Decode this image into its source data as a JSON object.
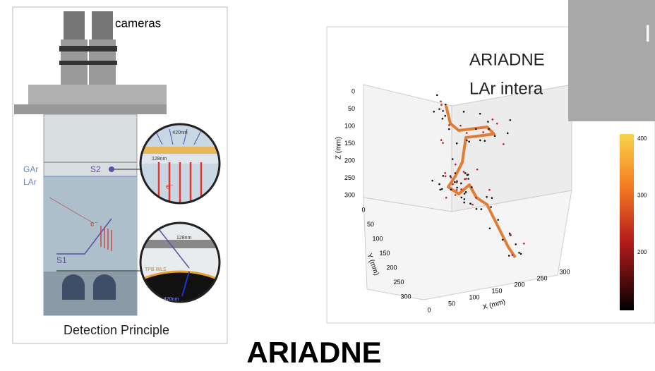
{
  "left_figure": {
    "camera_label": "cameras",
    "gas_label": "GAr",
    "liquid_label": "LAr",
    "s2_label": "S2",
    "s1_label": "S1",
    "zoom_top_wavelength_out": "420nm",
    "zoom_top_wavelength_in": "128nm",
    "zoom_top_electron": "e⁻",
    "drift_electron": "e⁻",
    "zoom_bottom_wavelength_in": "128nm",
    "zoom_bottom_wls": "TPB WLS",
    "zoom_bottom_wavelength_out": "420nm",
    "caption": "Detection Principle"
  },
  "right_figure": {
    "title_lines": [
      "ARIADNE",
      "LAr intera"
    ],
    "z_axis": {
      "label": "Z (mm)",
      "ticks": [
        "0",
        "50",
        "100",
        "150",
        "200",
        "250",
        "300"
      ]
    },
    "y_axis": {
      "label": "Y (mm)",
      "ticks": [
        "0",
        "50",
        "100",
        "150",
        "200",
        "250",
        "300"
      ]
    },
    "x_axis": {
      "label": "X (mm)",
      "ticks": [
        "0",
        "50",
        "100",
        "150",
        "200",
        "250",
        "300"
      ]
    },
    "colorbar_ticks": [
      "400",
      "300",
      "200"
    ]
  },
  "overlay_text": "I",
  "title": "ARIADNE"
}
